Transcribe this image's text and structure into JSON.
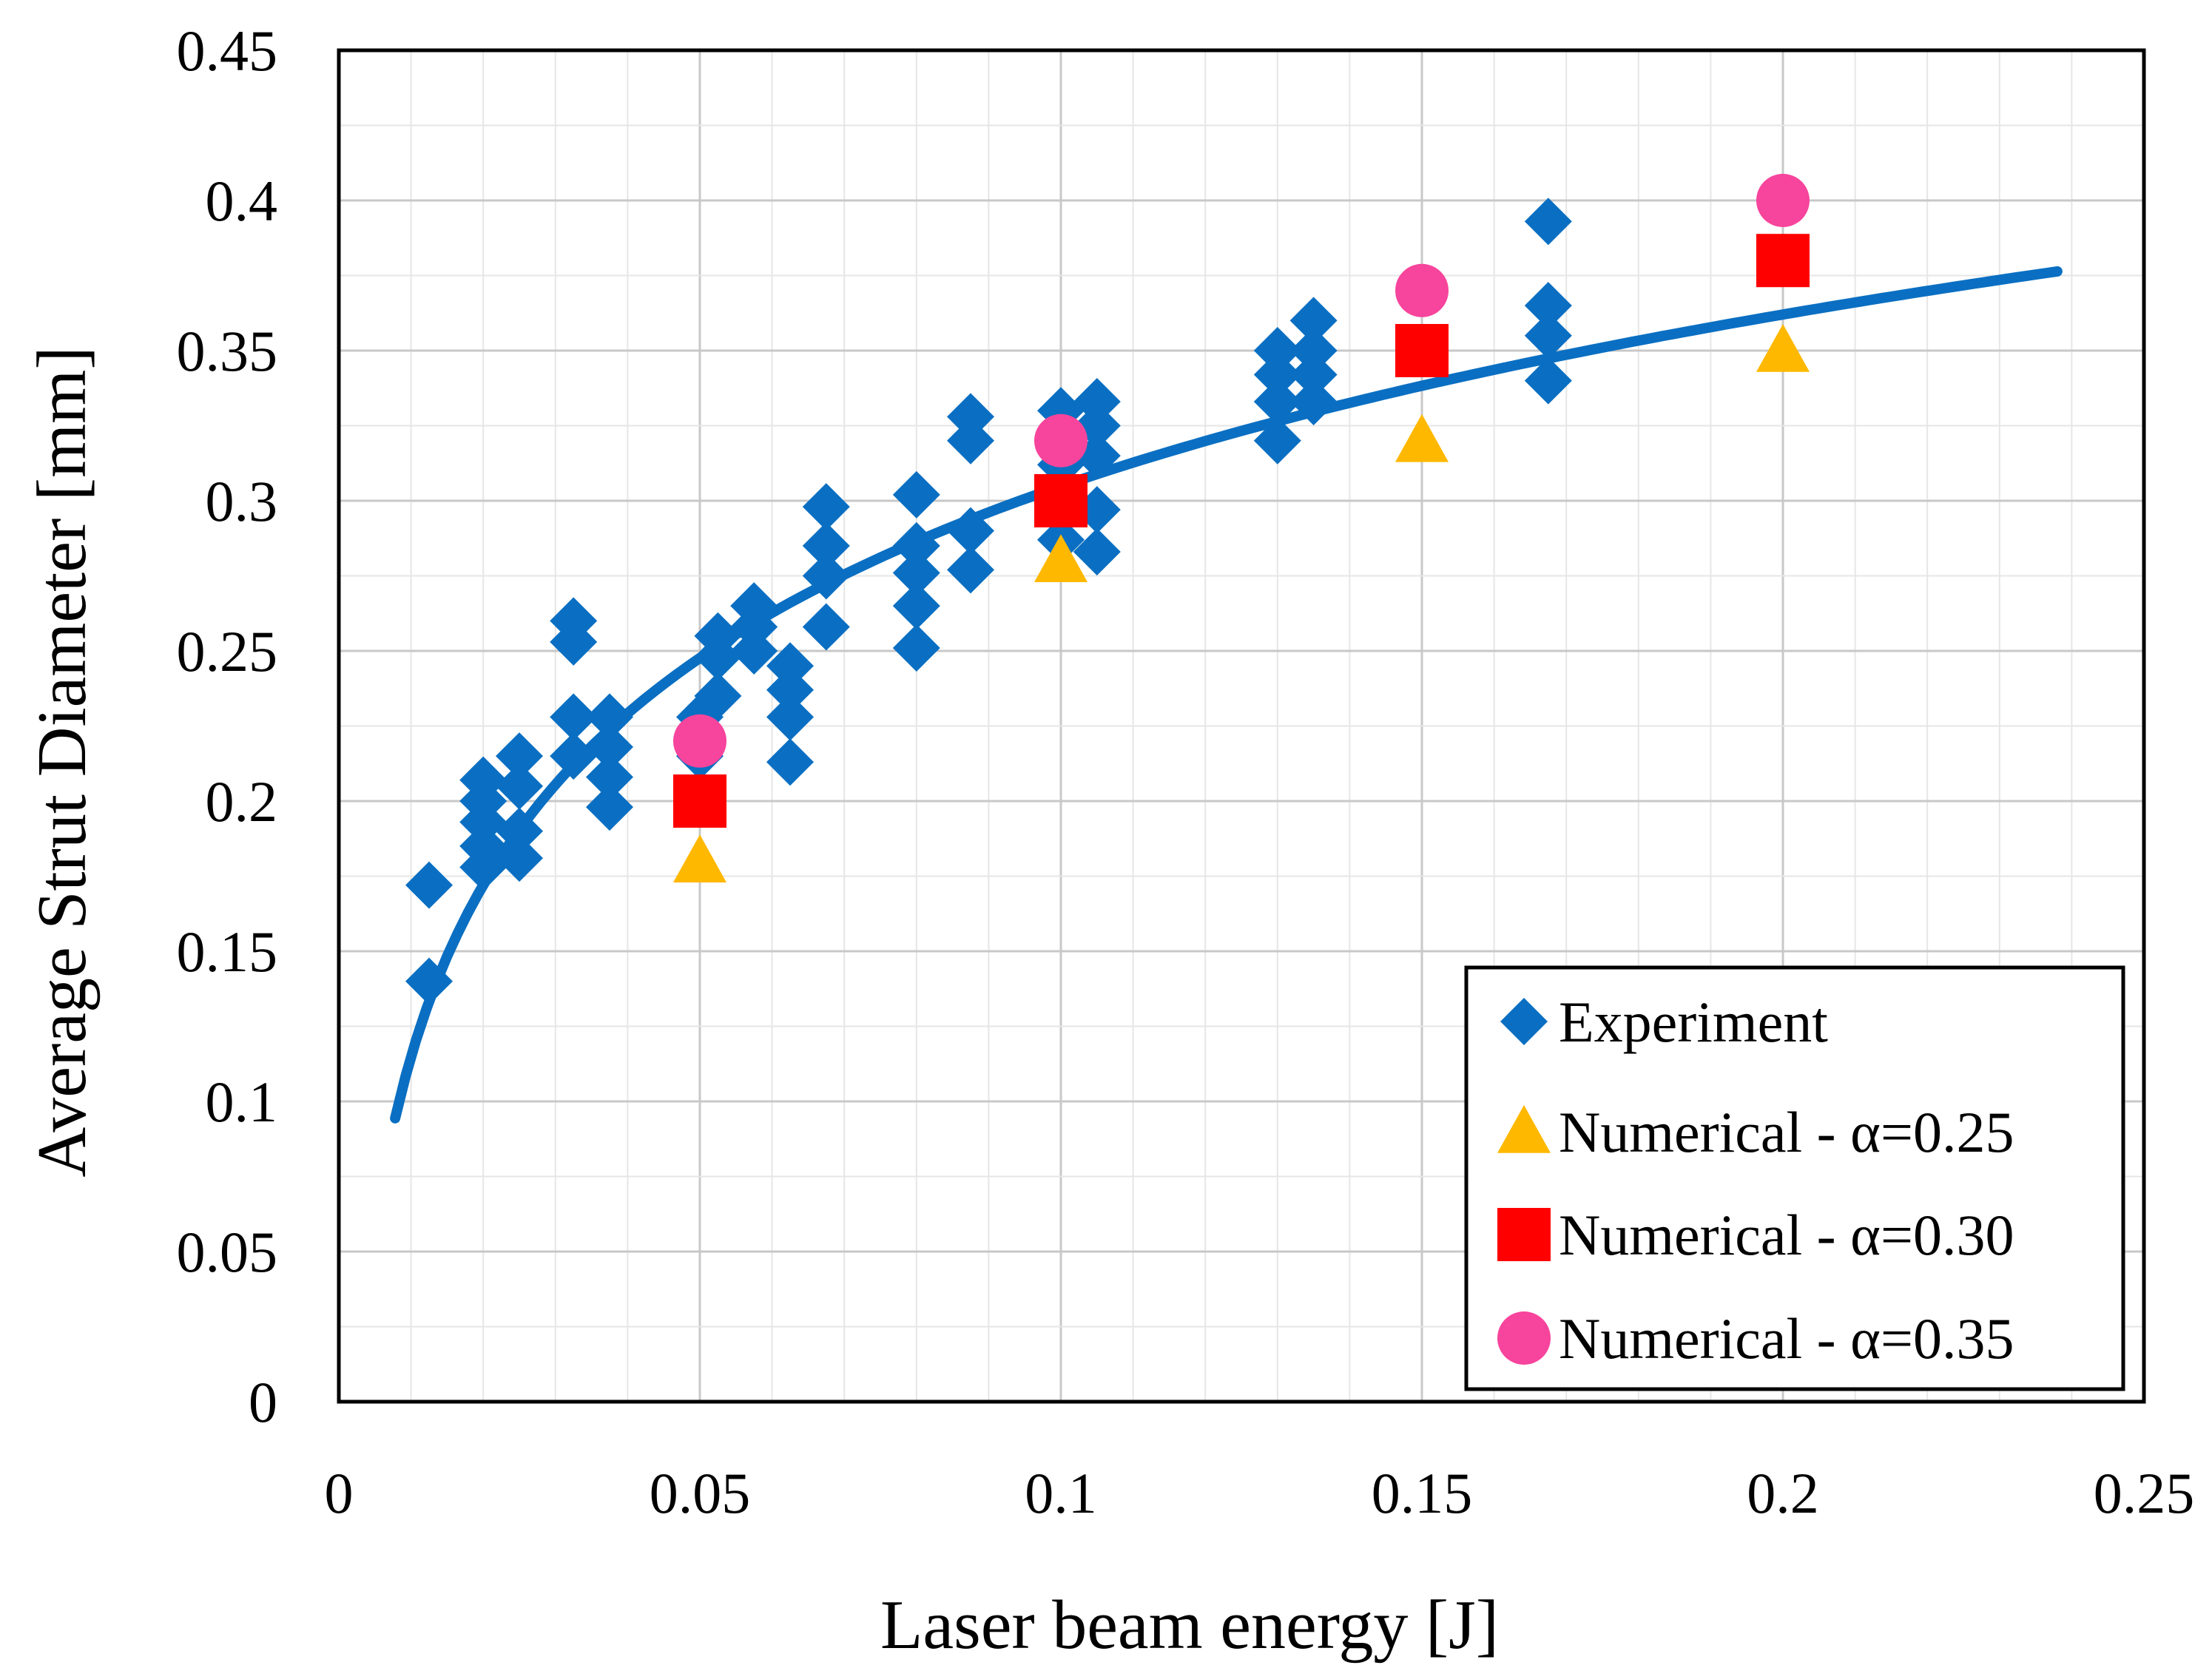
{
  "chart_data": {
    "type": "scatter",
    "xlabel": "Laser beam energy [J]",
    "ylabel": "Average Strut Diameter [mm]",
    "xlim": [
      0,
      0.25
    ],
    "ylim": [
      0,
      0.45
    ],
    "x_ticks": [
      "0",
      "0.05",
      "0.1",
      "0.15",
      "0.2",
      "0.25"
    ],
    "y_ticks": [
      "0",
      "0.05",
      "0.1",
      "0.15",
      "0.2",
      "0.25",
      "0.3",
      "0.35",
      "0.4",
      "0.45"
    ],
    "grid": true,
    "legend_position": "bottom-right",
    "series": [
      {
        "name": "Experiment",
        "marker": "diamond",
        "color": "#0a6fc2",
        "points": [
          [
            0.0125,
            0.172
          ],
          [
            0.0125,
            0.14
          ],
          [
            0.02,
            0.207
          ],
          [
            0.02,
            0.2
          ],
          [
            0.02,
            0.193
          ],
          [
            0.02,
            0.185
          ],
          [
            0.02,
            0.178
          ],
          [
            0.025,
            0.215
          ],
          [
            0.025,
            0.205
          ],
          [
            0.025,
            0.19
          ],
          [
            0.025,
            0.181
          ],
          [
            0.0325,
            0.26
          ],
          [
            0.0325,
            0.253
          ],
          [
            0.0325,
            0.228
          ],
          [
            0.0325,
            0.215
          ],
          [
            0.0375,
            0.228
          ],
          [
            0.0375,
            0.218
          ],
          [
            0.0375,
            0.208
          ],
          [
            0.0375,
            0.198
          ],
          [
            0.05,
            0.228
          ],
          [
            0.05,
            0.215
          ],
          [
            0.0525,
            0.255
          ],
          [
            0.0525,
            0.248
          ],
          [
            0.0525,
            0.235
          ],
          [
            0.0575,
            0.265
          ],
          [
            0.0575,
            0.258
          ],
          [
            0.0575,
            0.25
          ],
          [
            0.0625,
            0.245
          ],
          [
            0.0625,
            0.237
          ],
          [
            0.0625,
            0.228
          ],
          [
            0.0625,
            0.213
          ],
          [
            0.0675,
            0.298
          ],
          [
            0.0675,
            0.285
          ],
          [
            0.0675,
            0.275
          ],
          [
            0.0675,
            0.258
          ],
          [
            0.08,
            0.302
          ],
          [
            0.08,
            0.285
          ],
          [
            0.08,
            0.276
          ],
          [
            0.08,
            0.265
          ],
          [
            0.08,
            0.251
          ],
          [
            0.0875,
            0.328
          ],
          [
            0.0875,
            0.32
          ],
          [
            0.0875,
            0.29
          ],
          [
            0.0875,
            0.277
          ],
          [
            0.1,
            0.33
          ],
          [
            0.1,
            0.322
          ],
          [
            0.1,
            0.312
          ],
          [
            0.1,
            0.298
          ],
          [
            0.1,
            0.287
          ],
          [
            0.105,
            0.333
          ],
          [
            0.105,
            0.325
          ],
          [
            0.105,
            0.315
          ],
          [
            0.105,
            0.297
          ],
          [
            0.105,
            0.283
          ],
          [
            0.13,
            0.35
          ],
          [
            0.13,
            0.342
          ],
          [
            0.13,
            0.333
          ],
          [
            0.13,
            0.32
          ],
          [
            0.135,
            0.36
          ],
          [
            0.135,
            0.35
          ],
          [
            0.135,
            0.342
          ],
          [
            0.135,
            0.333
          ],
          [
            0.1675,
            0.393
          ],
          [
            0.1675,
            0.365
          ],
          [
            0.1675,
            0.355
          ],
          [
            0.1675,
            0.34
          ]
        ]
      },
      {
        "name": "Numerical - α=0.25",
        "marker": "triangle",
        "color": "#ffb800",
        "points": [
          [
            0.05,
            0.18
          ],
          [
            0.1,
            0.28
          ],
          [
            0.15,
            0.32
          ],
          [
            0.2,
            0.35
          ]
        ]
      },
      {
        "name": "Numerical - α=0.30",
        "marker": "square",
        "color": "#ff0000",
        "points": [
          [
            0.05,
            0.2
          ],
          [
            0.1,
            0.3
          ],
          [
            0.15,
            0.35
          ],
          [
            0.2,
            0.38
          ]
        ]
      },
      {
        "name": "Numerical - α=0.35",
        "marker": "circle",
        "color": "#f7449c",
        "points": [
          [
            0.05,
            0.22
          ],
          [
            0.1,
            0.32
          ],
          [
            0.15,
            0.37
          ],
          [
            0.2,
            0.4
          ]
        ]
      }
    ],
    "trendline": {
      "type": "logarithmic",
      "color": "#0a6fc2",
      "x_range": [
        0.0078,
        0.238
      ],
      "coefficients": {
        "a": 0.0825,
        "b": 0.4948
      }
    }
  }
}
